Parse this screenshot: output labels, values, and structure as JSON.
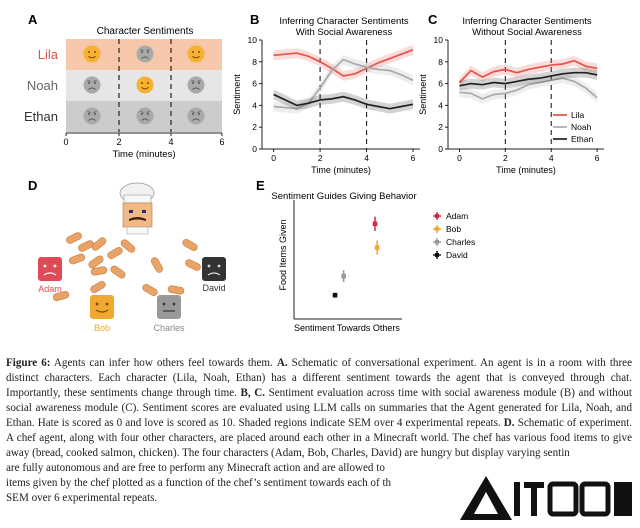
{
  "panels": {
    "A": {
      "letter": "A",
      "title": "Character Sentiments",
      "characters": [
        {
          "name": "Lila",
          "color": "#d9534f"
        },
        {
          "name": "Noah",
          "color": "#666666"
        },
        {
          "name": "Ethan",
          "color": "#333333"
        }
      ],
      "xlabel": "Time (minutes)",
      "xticks": [
        "0",
        "2",
        "4",
        "6"
      ]
    },
    "B": {
      "letter": "B",
      "title_line1": "Inferring Character Sentiments",
      "title_line2": "With Social Awareness"
    },
    "C": {
      "letter": "C",
      "title_line1": "Inferring Character Sentiments",
      "title_line2": "Without Social Awareness"
    },
    "D": {
      "letter": "D",
      "characters": [
        {
          "name": "Adam",
          "color": "#e04a55"
        },
        {
          "name": "David",
          "color": "#333333"
        },
        {
          "name": "Bob",
          "color": "#f0a830"
        },
        {
          "name": "Charles",
          "color": "#999999"
        }
      ]
    },
    "E": {
      "letter": "E",
      "title": "Sentiment Guides Giving Behavior",
      "xlabel": "Sentiment Towards Others",
      "ylabel": "Food Items Given"
    }
  },
  "chart_data": [
    {
      "type": "line",
      "panel": "B",
      "title": "Inferring Character Sentiments With Social Awareness",
      "xlabel": "Time (minutes)",
      "ylabel": "Sentiment",
      "xlim": [
        -0.5,
        6.3
      ],
      "ylim": [
        0,
        10
      ],
      "xticks": [
        0,
        2,
        4,
        6
      ],
      "yticks": [
        0,
        2,
        4,
        6,
        8,
        10
      ],
      "dashed_vlines": [
        2,
        4
      ],
      "x": [
        0,
        0.5,
        1,
        1.5,
        2,
        2.5,
        3,
        3.5,
        4,
        4.5,
        5,
        5.5,
        6
      ],
      "series": [
        {
          "name": "Lila",
          "color": "#e5534b",
          "values": [
            8.6,
            8.7,
            8.8,
            8.5,
            8.0,
            7.4,
            6.7,
            6.9,
            7.4,
            7.9,
            8.3,
            8.7,
            9.1
          ]
        },
        {
          "name": "Noah",
          "color": "#aaaaaa",
          "values": [
            3.9,
            3.8,
            3.7,
            4.2,
            5.6,
            7.2,
            8.2,
            7.8,
            7.5,
            7.3,
            7.2,
            6.8,
            6.3
          ]
        },
        {
          "name": "Ethan",
          "color": "#222222",
          "values": [
            5.0,
            4.5,
            4.0,
            4.2,
            4.5,
            4.6,
            4.8,
            4.5,
            4.1,
            3.9,
            3.7,
            3.9,
            4.1
          ]
        }
      ]
    },
    {
      "type": "line",
      "panel": "C",
      "title": "Inferring Character Sentiments Without Social Awareness",
      "xlabel": "Time (minutes)",
      "ylabel": "Sentiment",
      "xlim": [
        -0.5,
        6.3
      ],
      "ylim": [
        0,
        10
      ],
      "xticks": [
        0,
        2,
        4,
        6
      ],
      "yticks": [
        0,
        2,
        4,
        6,
        8,
        10
      ],
      "dashed_vlines": [
        2,
        4
      ],
      "legend": "bottom-right",
      "x": [
        0,
        0.5,
        1,
        1.5,
        2,
        2.5,
        3,
        3.5,
        4,
        4.5,
        5,
        5.5,
        6
      ],
      "series": [
        {
          "name": "Lila",
          "color": "#e5534b",
          "values": [
            6.1,
            7.2,
            6.6,
            7.1,
            7.3,
            7.0,
            7.3,
            7.5,
            7.7,
            7.8,
            8.1,
            7.6,
            7.4
          ]
        },
        {
          "name": "Noah",
          "color": "#aaaaaa",
          "values": [
            5.2,
            5.1,
            4.6,
            5.0,
            5.1,
            5.4,
            5.9,
            6.1,
            6.3,
            6.5,
            6.2,
            5.6,
            4.7
          ]
        },
        {
          "name": "Ethan",
          "color": "#222222",
          "values": [
            5.8,
            6.0,
            5.9,
            6.1,
            6.0,
            6.2,
            6.4,
            6.5,
            6.7,
            6.9,
            7.0,
            7.0,
            6.8
          ]
        }
      ]
    },
    {
      "type": "scatter",
      "panel": "E",
      "title": "Sentiment Guides Giving Behavior",
      "xlabel": "Sentiment Towards Others",
      "ylabel": "Food Items Given",
      "xlim": [
        0,
        10
      ],
      "ylim": [
        0,
        5
      ],
      "legend": "right",
      "series": [
        {
          "name": "Adam",
          "color": "#d7263d",
          "x": 7.5,
          "y": 4.0,
          "xerr": 0.2,
          "yerr": 0.3
        },
        {
          "name": "Bob",
          "color": "#f0a830",
          "x": 7.7,
          "y": 3.0,
          "xerr": 0.2,
          "yerr": 0.3
        },
        {
          "name": "Charles",
          "color": "#999999",
          "x": 4.6,
          "y": 1.8,
          "xerr": 0.2,
          "yerr": 0.25
        },
        {
          "name": "David",
          "color": "#111111",
          "x": 3.8,
          "y": 1.0,
          "xerr": 0.2,
          "yerr": 0.1
        }
      ]
    }
  ],
  "caption": {
    "fig_label": "Figure 6:",
    "intro": " Agents can infer how others feel towards them. ",
    "a_label": "A.",
    "a_text": " Schematic of conversational experiment. An agent is in a room with three distinct characters. Each character (Lila, Noah, Ethan) has a different sentiment towards the agent that is conveyed through chat. Importantly, these sentiments change through time. ",
    "bc_label": "B, C.",
    "bc_text": " Sentiment evaluation across time with social awareness module (B) and without social awareness module (C). Sentiment scores are evaluated using LLM calls on summaries that the Agent generated for Lila, Noah, and Ethan. Hate is scored as 0 and love is scored as 10. Shaded regions indicate SEM over 4 experimental repeats. ",
    "d_label": "D.",
    "d_text": " Schematic of experiment. A chef agent, along with four other characters, are placed around each other in a Minecraft world. The chef has various food items to give away (bread, cooked salmon, chicken). The four characters (Adam, Bob, Charles, David) are hungry but display varying sentin",
    "line_tail_1": "are fully autonomous and are free to perform any Minecraft action and are allowed to",
    "line_tail_2": "items given by the chef plotted as a function of the chef’s sentiment towards each of th",
    "line_tail_3": "SEM over 6 experimental repeats."
  }
}
